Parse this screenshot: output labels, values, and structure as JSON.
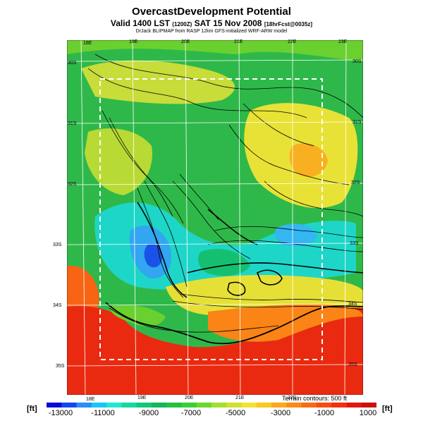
{
  "header": {
    "title": "OvercastDevelopment Potential",
    "subtitle_main": "Valid 1400 LST",
    "subtitle_small": "(1200Z)",
    "subtitle_date": "SAT 15 Nov 2008",
    "subtitle_fcst": "[18hrFcst@0035z]",
    "credit": "DrJack BLIPMAP from RASP 12km GFS-initialized WRF-ARW model"
  },
  "map": {
    "lon_top": [
      "18E",
      "19E",
      "20E",
      "21E",
      "22E",
      "23E"
    ],
    "lon_bottom": [
      "18E",
      "19E",
      "20E",
      "21E",
      "22E"
    ],
    "lat_left": [
      "30S",
      "31S",
      "32S",
      "33S",
      "34S",
      "35S"
    ],
    "lat_right": [
      "30S",
      "31S",
      "32S",
      "33S",
      "34S",
      "35S"
    ],
    "contour_note": "Terrain contours: 500 ft"
  },
  "colorbar": {
    "unit_left": "[ft]",
    "unit_right": "[ft]",
    "ticks": [
      "-13000",
      "-11000",
      "-9000",
      "-7000",
      "-5000",
      "-3000",
      "-1000",
      "1000"
    ],
    "colors": [
      "#0a0ad8",
      "#1846ee",
      "#2b8df5",
      "#16c8f2",
      "#20e6d6",
      "#18d6a0",
      "#12c878",
      "#10b85a",
      "#24c040",
      "#3ad033",
      "#6ad82e",
      "#a0e030",
      "#d0e030",
      "#f2e234",
      "#fac820",
      "#fba81a",
      "#fb8a16",
      "#fa6a14",
      "#f84c12",
      "#f23010",
      "#e01a0e",
      "#cc100c"
    ]
  }
}
